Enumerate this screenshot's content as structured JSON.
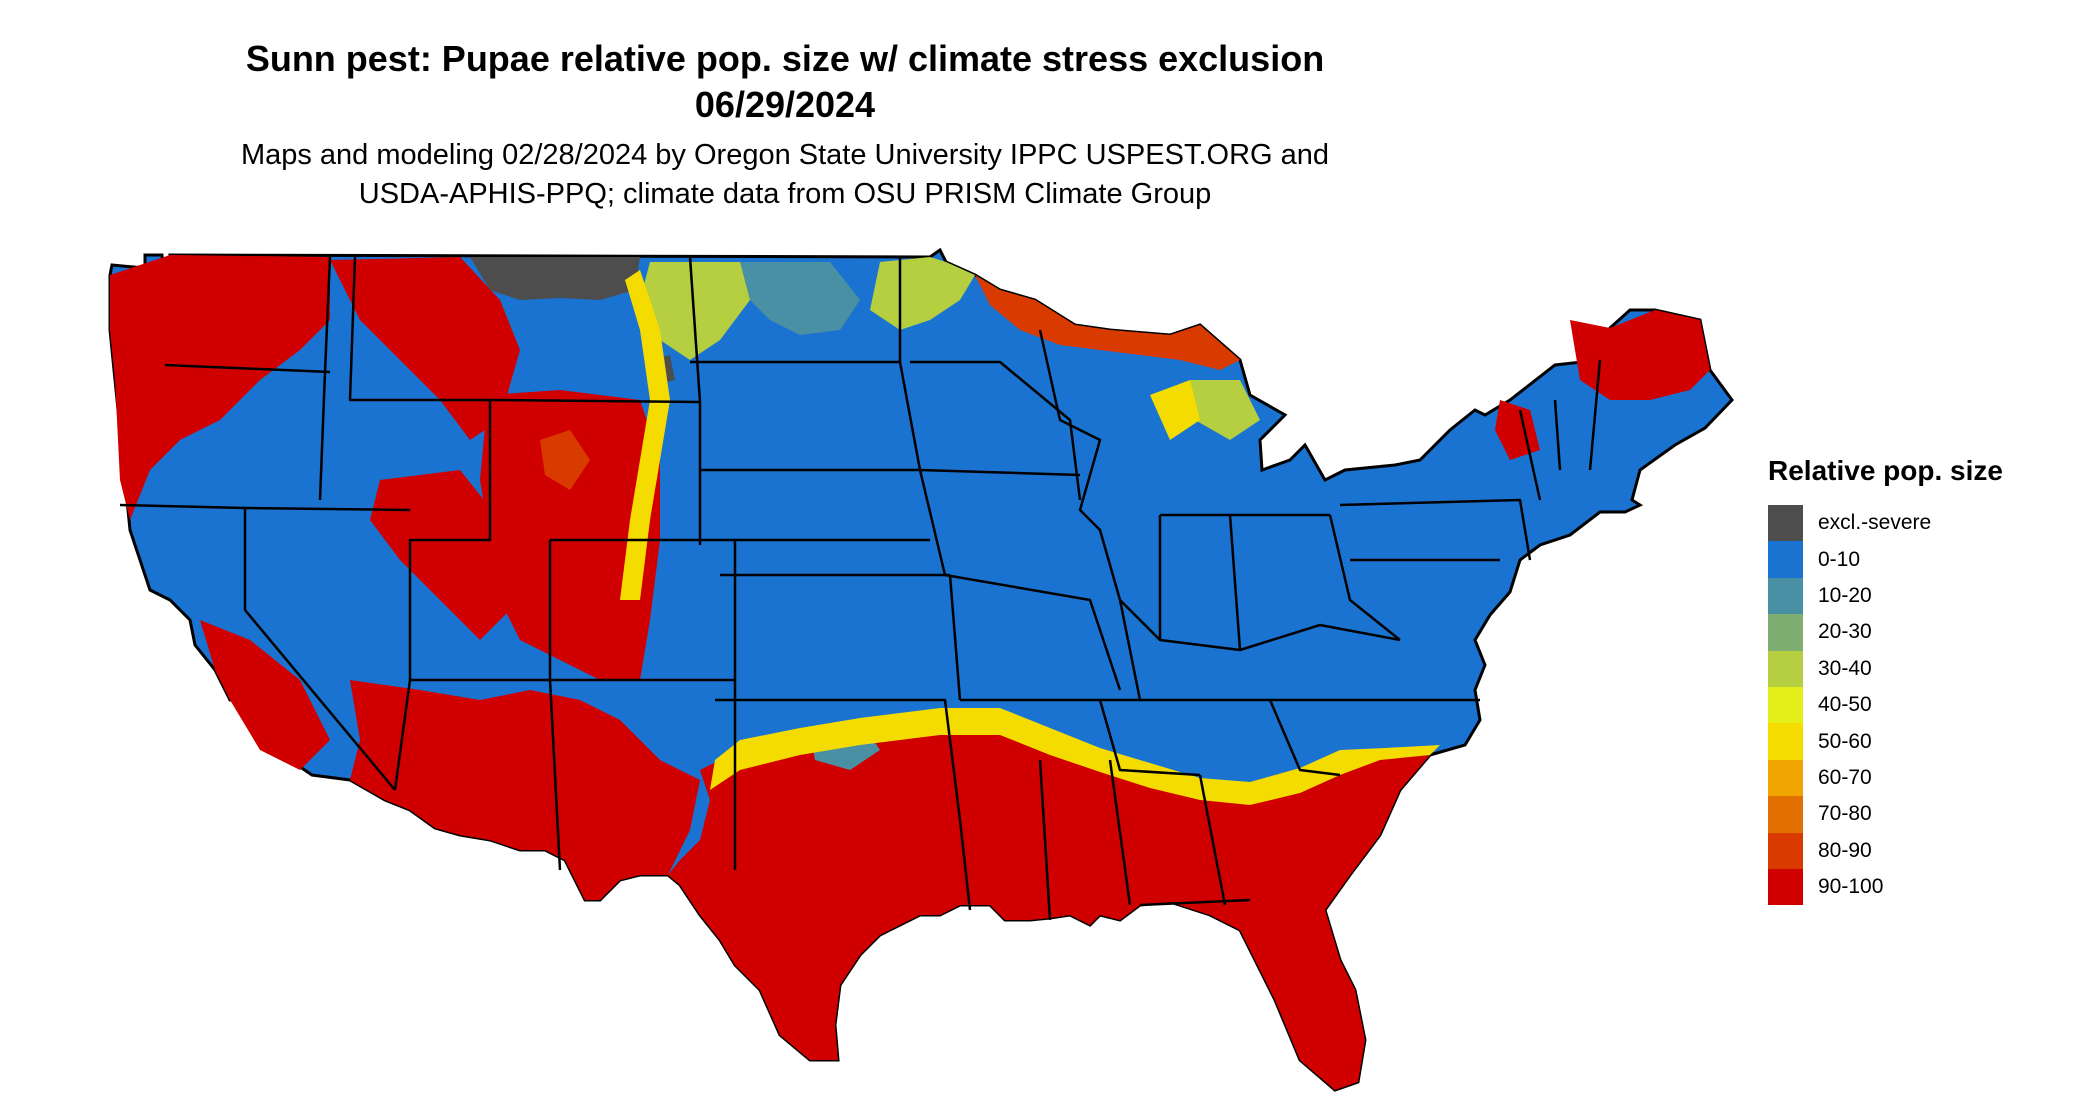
{
  "title": {
    "line1": "Sunn pest: Pupae relative pop. size w/ climate stress exclusion",
    "line2": "06/29/2024"
  },
  "subtitle": {
    "line1": "Maps and modeling 02/28/2024 by Oregon State University IPPC USPEST.ORG and",
    "line2": "USDA-APHIS-PPQ; climate data from OSU PRISM Climate Group"
  },
  "legend": {
    "title": "Relative pop. size",
    "items": [
      {
        "label": "excl.-severe",
        "color": "#4d4d4d"
      },
      {
        "label": "0-10",
        "color": "#1a73d0"
      },
      {
        "label": "10-20",
        "color": "#4a90a4"
      },
      {
        "label": "20-30",
        "color": "#7fae72"
      },
      {
        "label": "30-40",
        "color": "#b5cf40"
      },
      {
        "label": "40-50",
        "color": "#e4ef1a"
      },
      {
        "label": "50-60",
        "color": "#f5dc00"
      },
      {
        "label": "60-70",
        "color": "#f0a400"
      },
      {
        "label": "70-80",
        "color": "#e27000"
      },
      {
        "label": "80-90",
        "color": "#d93a00"
      },
      {
        "label": "90-100",
        "color": "#d10000"
      }
    ]
  }
}
